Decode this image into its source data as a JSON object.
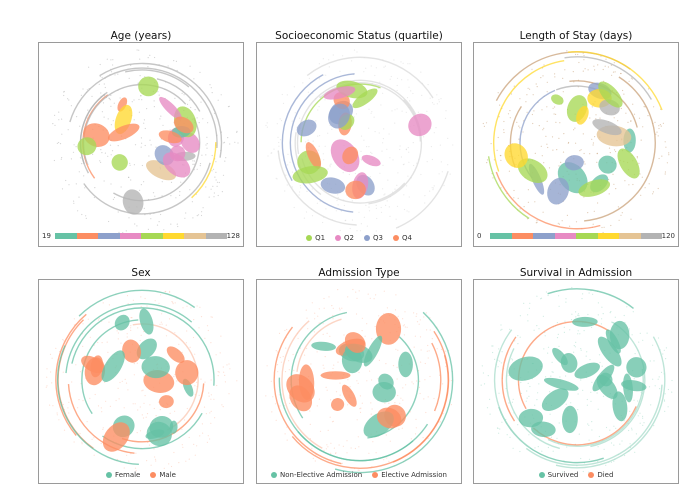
{
  "chart_data": [
    {
      "type": "scatter",
      "title": "Age (years)",
      "encoding": "colorbar",
      "colorbar": {
        "min": "19",
        "max": "128"
      },
      "palette": [
        "#66c2a5",
        "#fc8d62",
        "#8da0cb",
        "#e78ac3",
        "#a6d854",
        "#ffd92f",
        "#e5c494",
        "#b3b3b3"
      ],
      "base_color": "#b3b3b3"
    },
    {
      "type": "scatter",
      "title": "Socioeconomic Status (quartile)",
      "encoding": "categorical",
      "base_color": "#d9d9d9",
      "legend": [
        {
          "label": "Q1",
          "color": "#a6d854"
        },
        {
          "label": "Q2",
          "color": "#e78ac3"
        },
        {
          "label": "Q3",
          "color": "#8da0cb"
        },
        {
          "label": "Q4",
          "color": "#fc8d62"
        }
      ]
    },
    {
      "type": "scatter",
      "title": "Length of Stay (days)",
      "encoding": "colorbar",
      "colorbar": {
        "min": "0",
        "max": "120"
      },
      "palette": [
        "#66c2a5",
        "#fc8d62",
        "#8da0cb",
        "#e78ac3",
        "#a6d854",
        "#ffd92f",
        "#e5c494",
        "#b3b3b3"
      ],
      "base_color": "#c9a27a"
    },
    {
      "type": "scatter",
      "title": "Sex",
      "encoding": "categorical",
      "base_color": "#fbc7b2",
      "legend": [
        {
          "label": "Female",
          "color": "#66c2a5"
        },
        {
          "label": "Male",
          "color": "#fc8d62"
        }
      ]
    },
    {
      "type": "scatter",
      "title": "Admission Type",
      "encoding": "categorical",
      "base_color": "#fbc7b2",
      "legend": [
        {
          "label": "Non-Elective Admission",
          "color": "#66c2a5"
        },
        {
          "label": "Elective Admission",
          "color": "#fc8d62"
        }
      ]
    },
    {
      "type": "scatter",
      "title": "Survival in Admission",
      "encoding": "categorical",
      "base_color": "#a8dccb",
      "legend": [
        {
          "label": "Survived",
          "color": "#66c2a5"
        },
        {
          "label": "Died",
          "color": "#fc8d62"
        }
      ]
    }
  ]
}
